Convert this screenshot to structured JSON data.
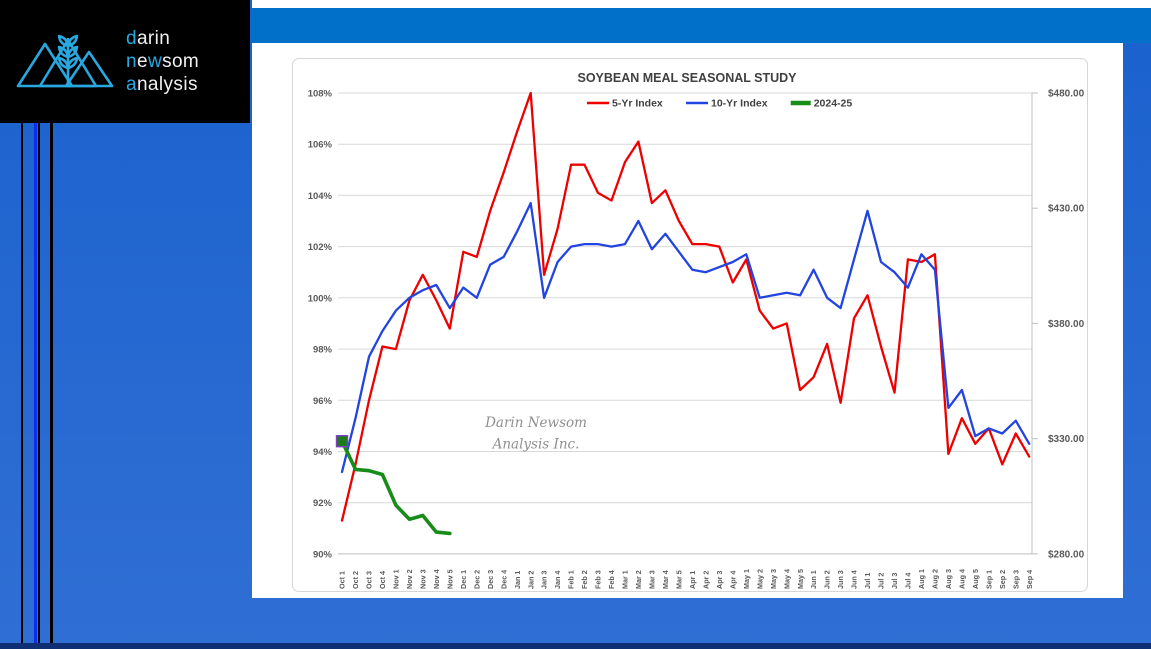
{
  "page": {
    "top_band_color": "#0070c9",
    "bottom_strip_color": "#0f2f74",
    "accent_line_color": "#0a2ff0"
  },
  "logo": {
    "box_color": "#000000",
    "mark_color": "#29a8e0",
    "highlight_color": "#29a8e0",
    "text_color": "#f0f0f0",
    "lines": [
      [
        {
          "t": "d",
          "hl": true
        },
        {
          "t": "arin",
          "hl": false
        }
      ],
      [
        {
          "t": "n",
          "hl": true
        },
        {
          "t": "e",
          "hl": false
        },
        {
          "t": "w",
          "hl": true
        },
        {
          "t": "som",
          "hl": false
        }
      ],
      [
        {
          "t": "a",
          "hl": true
        },
        {
          "t": "nalysis",
          "hl": false
        }
      ]
    ]
  },
  "chart_data": {
    "type": "line",
    "title": "SOYBEAN MEAL SEASONAL STUDY",
    "title_color": "#404040",
    "grid": true,
    "gridline_color": "#d9d9d9",
    "axis_label_color": "#595959",
    "legend_position": "top",
    "watermark": [
      "Darin Newsom",
      "Analysis Inc."
    ],
    "left_axis": {
      "ticks": [
        "108%",
        "106%",
        "104%",
        "102%",
        "100%",
        "98%",
        "96%",
        "94%",
        "92%",
        "90%"
      ],
      "min": 90,
      "max": 108,
      "step": 2
    },
    "right_axis": {
      "ticks": [
        "$480.00",
        "$430.00",
        "$380.00",
        "$330.00",
        "$280.00"
      ],
      "min": 280,
      "max": 480,
      "step": 50
    },
    "categories": [
      "Oct 1",
      "Oct 2",
      "Oct 3",
      "Oct 4",
      "Nov 1",
      "Nov 2",
      "Nov 3",
      "Nov 4",
      "Nov 5",
      "Dec 1",
      "Dec 2",
      "Dec 3",
      "Dec 4",
      "Jan 1",
      "Jan 2",
      "Jan 3",
      "Jan 4",
      "Feb 1",
      "Feb 2",
      "Feb 3",
      "Feb 4",
      "Mar 1",
      "Mar 2",
      "Mar 3",
      "Mar 4",
      "Mar 5",
      "Apr 1",
      "Apr 2",
      "Apr 3",
      "Apr 4",
      "May 1",
      "May 2",
      "May 3",
      "May 4",
      "May 5",
      "Jun 1",
      "Jun 2",
      "Jun 3",
      "Jun 4",
      "Jul 1",
      "Jul 2",
      "Jul 3",
      "Jul 4",
      "Aug 1",
      "Aug 2",
      "Aug 3",
      "Aug 4",
      "Aug 5",
      "Sep 1",
      "Sep 2",
      "Sep 3",
      "Sep 4"
    ],
    "series": [
      {
        "name": "5-Yr Index",
        "color": "#ee0000",
        "width": 2.3,
        "values": [
          91.3,
          93.5,
          96.0,
          98.1,
          98.0,
          99.9,
          100.9,
          99.9,
          98.8,
          101.8,
          101.6,
          103.4,
          104.9,
          106.5,
          108.0,
          100.9,
          102.7,
          105.2,
          105.2,
          104.1,
          103.8,
          105.3,
          106.1,
          103.7,
          104.2,
          103.0,
          102.1,
          102.1,
          102.0,
          100.6,
          101.5,
          99.5,
          98.8,
          99.0,
          96.4,
          96.9,
          98.2,
          95.9,
          99.2,
          100.1,
          98.1,
          96.3,
          101.5,
          101.4,
          101.7,
          93.9,
          95.3,
          94.3,
          94.9,
          93.5,
          94.7,
          93.8
        ]
      },
      {
        "name": "10-Yr Index",
        "color": "#2244e0",
        "width": 2.3,
        "values": [
          93.2,
          95.3,
          97.7,
          98.7,
          99.5,
          100.0,
          100.3,
          100.5,
          99.6,
          100.4,
          100.0,
          101.3,
          101.6,
          102.6,
          103.7,
          100.0,
          101.4,
          102.0,
          102.1,
          102.1,
          102.0,
          102.1,
          103.0,
          101.9,
          102.5,
          101.8,
          101.1,
          101.0,
          101.2,
          101.4,
          101.7,
          100.0,
          100.1,
          100.2,
          100.1,
          101.1,
          100.0,
          99.6,
          101.5,
          103.4,
          101.4,
          101.0,
          100.4,
          101.7,
          101.1,
          95.7,
          96.4,
          94.6,
          94.9,
          94.7,
          95.2,
          94.3
        ]
      },
      {
        "name": "2024-25",
        "color": "#188c18",
        "width": 3.6,
        "marker": {
          "shape": "square",
          "fill": "#1b7a1b",
          "stroke": "#8040c0"
        },
        "values": [
          94.4,
          93.3,
          93.25,
          93.1,
          91.9,
          91.35,
          91.5,
          90.85,
          90.8
        ]
      }
    ]
  }
}
